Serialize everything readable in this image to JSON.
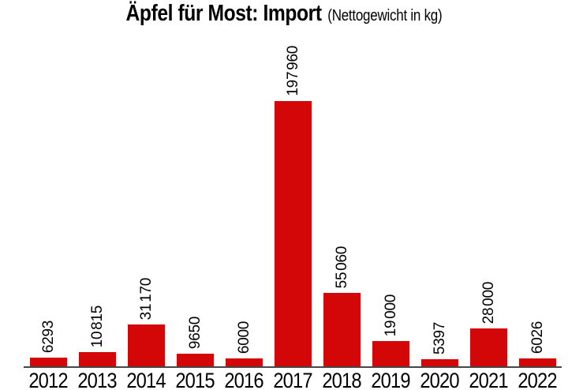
{
  "title": {
    "main": "Äpfel für Most: Import",
    "subtitle": "(Nettogewicht in kg)"
  },
  "chart_data": {
    "type": "bar",
    "title": "Äpfel für Most: Import",
    "subtitle": "(Nettogewicht in kg)",
    "unit": "kg",
    "categories": [
      "2012",
      "2013",
      "2014",
      "2015",
      "2016",
      "2017",
      "2018",
      "2019",
      "2020",
      "2021",
      "2022"
    ],
    "values": [
      6293,
      10815,
      31170,
      9650,
      6000,
      197960,
      55060,
      19000,
      5397,
      28000,
      6026
    ],
    "value_labels": [
      "6293",
      "10 815",
      "31 170",
      "9650",
      "6000",
      "197 960",
      "55 060",
      "19 000",
      "5397",
      "28 000",
      "6026"
    ],
    "xlabel": "",
    "ylabel": "",
    "ylim": [
      0,
      197960
    ],
    "grid": false,
    "legend": false,
    "value_label_rotation": 90,
    "bar_color": "#d40708",
    "axis_color": "#464646",
    "text_color": "#000000"
  }
}
